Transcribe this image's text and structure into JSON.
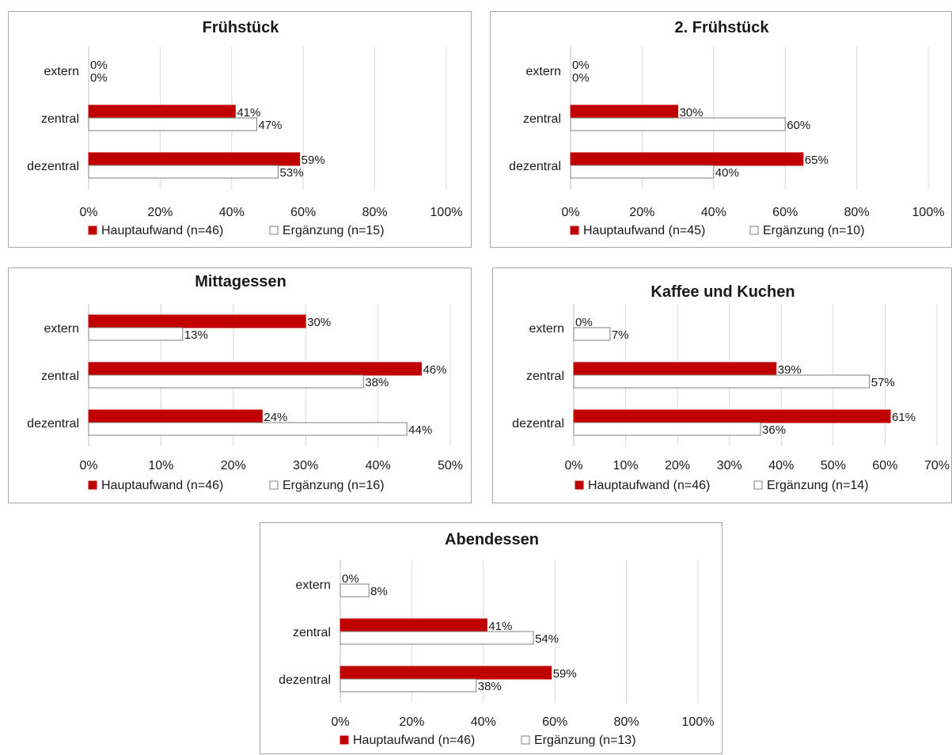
{
  "colors": {
    "primary": "#c00000",
    "secondary_fill": "#ffffff",
    "secondary_stroke": "#7f7f7f"
  },
  "chart_data": [
    {
      "type": "bar",
      "orientation": "horizontal",
      "title": "Frühstück",
      "categories": [
        "extern",
        "zentral",
        "dezentral"
      ],
      "series": [
        {
          "name": "Hauptaufwand (n=46)",
          "values": [
            0,
            41,
            59
          ],
          "labels": [
            "0%",
            "41%",
            "59%"
          ]
        },
        {
          "name": "Ergänzung (n=15)",
          "values": [
            0,
            47,
            53
          ],
          "labels": [
            "0%",
            "47%",
            "53%"
          ]
        }
      ],
      "xlim": [
        0,
        100
      ],
      "ticks": [
        "0%",
        "20%",
        "40%",
        "60%",
        "80%",
        "100%"
      ],
      "grid": true,
      "legend": "bottom"
    },
    {
      "type": "bar",
      "orientation": "horizontal",
      "title": "2. Frühstück",
      "categories": [
        "extern",
        "zentral",
        "dezentral"
      ],
      "series": [
        {
          "name": "Hauptaufwand (n=45)",
          "values": [
            0,
            30,
            65
          ],
          "labels": [
            "0%",
            "30%",
            "65%"
          ]
        },
        {
          "name": "Ergänzung (n=10)",
          "values": [
            0,
            60,
            40
          ],
          "labels": [
            "0%",
            "60%",
            "40%"
          ]
        }
      ],
      "xlim": [
        0,
        100
      ],
      "ticks": [
        "0%",
        "20%",
        "40%",
        "60%",
        "80%",
        "100%"
      ],
      "grid": true,
      "legend": "bottom"
    },
    {
      "type": "bar",
      "orientation": "horizontal",
      "title": "Mittagessen",
      "categories": [
        "extern",
        "zentral",
        "dezentral"
      ],
      "series": [
        {
          "name": "Hauptaufwand (n=46)",
          "values": [
            30,
            46,
            24
          ],
          "labels": [
            "30%",
            "46%",
            "24%"
          ]
        },
        {
          "name": "Ergänzung (n=16)",
          "values": [
            13,
            38,
            44
          ],
          "labels": [
            "13%",
            "38%",
            "44%"
          ]
        }
      ],
      "xlim": [
        0,
        50
      ],
      "ticks": [
        "0%",
        "10%",
        "20%",
        "30%",
        "40%",
        "50%"
      ],
      "grid": true,
      "legend": "bottom"
    },
    {
      "type": "bar",
      "orientation": "horizontal",
      "title": "Kaffee und Kuchen",
      "categories": [
        "extern",
        "zentral",
        "dezentral"
      ],
      "series": [
        {
          "name": "Hauptaufwand (n=46)",
          "values": [
            0,
            39,
            61
          ],
          "labels": [
            "0%",
            "39%",
            "61%"
          ]
        },
        {
          "name": "Ergänzung (n=14)",
          "values": [
            7,
            57,
            36
          ],
          "labels": [
            "7%",
            "57%",
            "36%"
          ]
        }
      ],
      "xlim": [
        0,
        70
      ],
      "ticks": [
        "0%",
        "10%",
        "20%",
        "30%",
        "40%",
        "50%",
        "60%",
        "70%"
      ],
      "grid": true,
      "legend": "bottom"
    },
    {
      "type": "bar",
      "orientation": "horizontal",
      "title": "Abendessen",
      "categories": [
        "extern",
        "zentral",
        "dezentral"
      ],
      "series": [
        {
          "name": "Hauptaufwand (n=46)",
          "values": [
            0,
            41,
            59
          ],
          "labels": [
            "0%",
            "41%",
            "59%"
          ]
        },
        {
          "name": "Ergänzung (n=13)",
          "values": [
            8,
            54,
            38
          ],
          "labels": [
            "8%",
            "54%",
            "38%"
          ]
        }
      ],
      "xlim": [
        0,
        100
      ],
      "ticks": [
        "0%",
        "20%",
        "40%",
        "60%",
        "80%",
        "100%"
      ],
      "grid": true,
      "legend": "bottom"
    }
  ]
}
